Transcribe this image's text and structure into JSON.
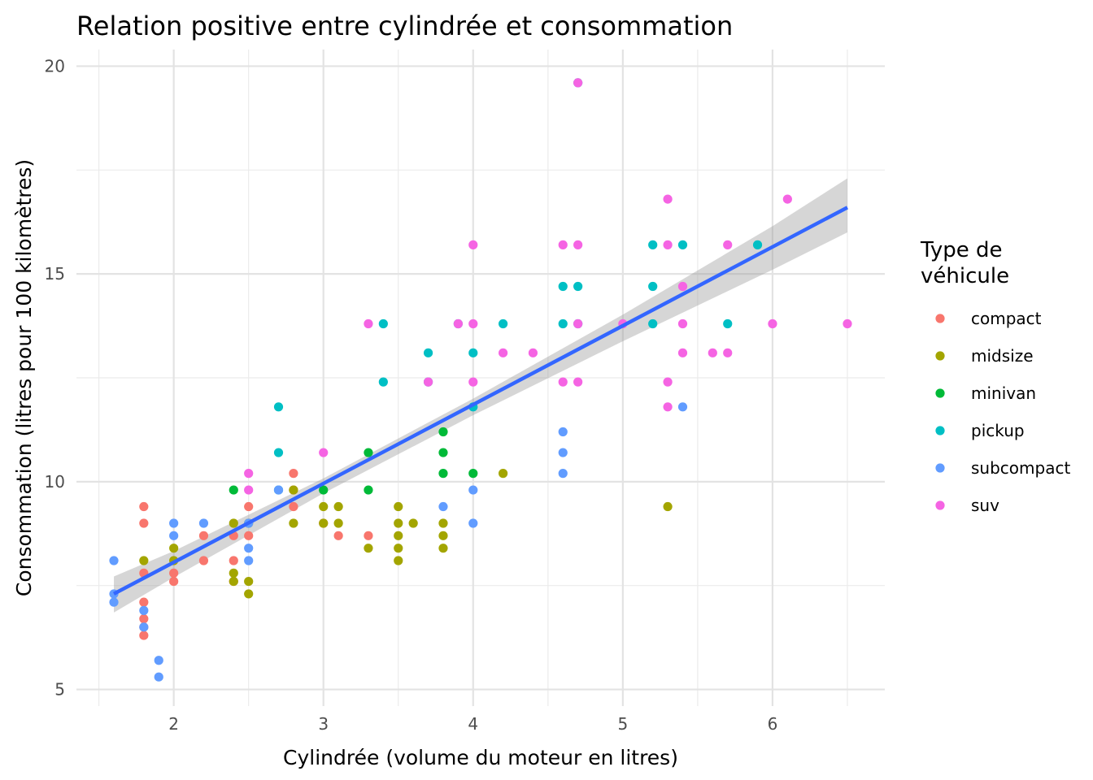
{
  "chart_data": {
    "type": "scatter",
    "title": "Relation positive entre cylindrée et consommation",
    "xlabel": "Cylindrée (volume du moteur en litres)",
    "ylabel": "Consommation (litres pour 100 kilomètres)",
    "xlim": [
      1.35,
      6.75
    ],
    "ylim": [
      4.6,
      20.4
    ],
    "x_ticks": [
      2,
      3,
      4,
      5,
      6
    ],
    "y_ticks": [
      5,
      10,
      15,
      20
    ],
    "grid": true,
    "legend": {
      "title_line1": "Type de",
      "title_line2": "véhicule",
      "placement": "right"
    },
    "trend_line": {
      "method": "linear fit",
      "color": "#3366FF",
      "band_color": "#999999",
      "points": [
        {
          "x": 1.6,
          "y": 7.3,
          "lower": 6.85,
          "upper": 7.72
        },
        {
          "x": 2.0,
          "y": 8.0,
          "lower": 7.7,
          "upper": 8.33
        },
        {
          "x": 3.0,
          "y": 9.9,
          "lower": 9.72,
          "upper": 10.08
        },
        {
          "x": 4.0,
          "y": 11.8,
          "lower": 11.6,
          "upper": 12.0
        },
        {
          "x": 5.0,
          "y": 13.7,
          "lower": 13.38,
          "upper": 14.02
        },
        {
          "x": 6.0,
          "y": 15.6,
          "lower": 15.1,
          "upper": 16.15
        },
        {
          "x": 6.5,
          "y": 16.6,
          "lower": 16.0,
          "upper": 17.3
        }
      ]
    },
    "series": [
      {
        "name": "compact",
        "color": "#F8766D",
        "points": [
          {
            "x": 1.8,
            "y": 9.4
          },
          {
            "x": 1.8,
            "y": 9.0
          },
          {
            "x": 1.8,
            "y": 7.8
          },
          {
            "x": 1.8,
            "y": 7.1
          },
          {
            "x": 1.8,
            "y": 6.7
          },
          {
            "x": 1.8,
            "y": 6.5
          },
          {
            "x": 1.8,
            "y": 6.3
          },
          {
            "x": 2.0,
            "y": 7.8
          },
          {
            "x": 2.0,
            "y": 7.6
          },
          {
            "x": 2.2,
            "y": 8.1
          },
          {
            "x": 2.2,
            "y": 8.7
          },
          {
            "x": 2.4,
            "y": 8.1
          },
          {
            "x": 2.4,
            "y": 7.6
          },
          {
            "x": 2.4,
            "y": 8.7
          },
          {
            "x": 2.5,
            "y": 9.4
          },
          {
            "x": 2.5,
            "y": 8.7
          },
          {
            "x": 2.8,
            "y": 10.2
          },
          {
            "x": 2.8,
            "y": 9.8
          },
          {
            "x": 2.8,
            "y": 9.4
          },
          {
            "x": 3.0,
            "y": 9.0
          },
          {
            "x": 3.1,
            "y": 8.7
          },
          {
            "x": 3.3,
            "y": 8.7
          }
        ]
      },
      {
        "name": "midsize",
        "color": "#A3A500",
        "points": [
          {
            "x": 1.8,
            "y": 8.1
          },
          {
            "x": 2.0,
            "y": 8.4
          },
          {
            "x": 2.0,
            "y": 8.1
          },
          {
            "x": 2.4,
            "y": 9.0
          },
          {
            "x": 2.4,
            "y": 7.8
          },
          {
            "x": 2.4,
            "y": 7.6
          },
          {
            "x": 2.5,
            "y": 7.6
          },
          {
            "x": 2.5,
            "y": 7.3
          },
          {
            "x": 2.5,
            "y": 9.0
          },
          {
            "x": 2.8,
            "y": 9.0
          },
          {
            "x": 2.8,
            "y": 9.8
          },
          {
            "x": 3.0,
            "y": 9.4
          },
          {
            "x": 3.0,
            "y": 9.0
          },
          {
            "x": 3.1,
            "y": 9.4
          },
          {
            "x": 3.1,
            "y": 9.0
          },
          {
            "x": 3.3,
            "y": 8.4
          },
          {
            "x": 3.5,
            "y": 9.4
          },
          {
            "x": 3.5,
            "y": 9.0
          },
          {
            "x": 3.5,
            "y": 8.7
          },
          {
            "x": 3.5,
            "y": 8.4
          },
          {
            "x": 3.5,
            "y": 8.1
          },
          {
            "x": 3.6,
            "y": 9.0
          },
          {
            "x": 3.8,
            "y": 9.0
          },
          {
            "x": 3.8,
            "y": 8.7
          },
          {
            "x": 3.8,
            "y": 8.4
          },
          {
            "x": 4.2,
            "y": 10.2
          },
          {
            "x": 5.3,
            "y": 9.4
          }
        ]
      },
      {
        "name": "minivan",
        "color": "#00BA38",
        "points": [
          {
            "x": 2.4,
            "y": 9.8
          },
          {
            "x": 3.0,
            "y": 9.8
          },
          {
            "x": 3.3,
            "y": 10.7
          },
          {
            "x": 3.3,
            "y": 9.8
          },
          {
            "x": 3.8,
            "y": 11.2
          },
          {
            "x": 3.8,
            "y": 10.7
          },
          {
            "x": 3.8,
            "y": 10.2
          },
          {
            "x": 4.0,
            "y": 10.2
          }
        ]
      },
      {
        "name": "pickup",
        "color": "#00BFC4",
        "points": [
          {
            "x": 2.7,
            "y": 11.8
          },
          {
            "x": 2.7,
            "y": 10.7
          },
          {
            "x": 2.7,
            "y": 9.8
          },
          {
            "x": 3.4,
            "y": 13.8
          },
          {
            "x": 3.4,
            "y": 12.4
          },
          {
            "x": 3.7,
            "y": 13.1
          },
          {
            "x": 3.7,
            "y": 12.4
          },
          {
            "x": 3.9,
            "y": 13.8
          },
          {
            "x": 4.0,
            "y": 13.1
          },
          {
            "x": 4.0,
            "y": 11.8
          },
          {
            "x": 4.2,
            "y": 13.8
          },
          {
            "x": 4.6,
            "y": 14.7
          },
          {
            "x": 4.6,
            "y": 13.8
          },
          {
            "x": 4.7,
            "y": 14.7
          },
          {
            "x": 4.7,
            "y": 13.8
          },
          {
            "x": 4.7,
            "y": 19.6
          },
          {
            "x": 5.2,
            "y": 15.7
          },
          {
            "x": 5.2,
            "y": 14.7
          },
          {
            "x": 5.2,
            "y": 13.8
          },
          {
            "x": 5.4,
            "y": 15.7
          },
          {
            "x": 5.7,
            "y": 13.8
          },
          {
            "x": 5.9,
            "y": 15.7
          }
        ]
      },
      {
        "name": "subcompact",
        "color": "#619CFF",
        "points": [
          {
            "x": 1.6,
            "y": 8.1
          },
          {
            "x": 1.6,
            "y": 7.3
          },
          {
            "x": 1.6,
            "y": 7.1
          },
          {
            "x": 1.8,
            "y": 6.9
          },
          {
            "x": 1.8,
            "y": 6.5
          },
          {
            "x": 1.9,
            "y": 5.7
          },
          {
            "x": 1.9,
            "y": 5.3
          },
          {
            "x": 2.0,
            "y": 9.0
          },
          {
            "x": 2.0,
            "y": 8.7
          },
          {
            "x": 2.2,
            "y": 9.0
          },
          {
            "x": 2.5,
            "y": 9.0
          },
          {
            "x": 2.5,
            "y": 8.4
          },
          {
            "x": 2.5,
            "y": 8.1
          },
          {
            "x": 2.7,
            "y": 9.8
          },
          {
            "x": 3.8,
            "y": 9.4
          },
          {
            "x": 4.0,
            "y": 9.8
          },
          {
            "x": 4.0,
            "y": 9.0
          },
          {
            "x": 4.6,
            "y": 11.2
          },
          {
            "x": 4.6,
            "y": 10.7
          },
          {
            "x": 4.6,
            "y": 10.2
          },
          {
            "x": 5.4,
            "y": 11.8
          }
        ]
      },
      {
        "name": "suv",
        "color": "#F564E3",
        "points": [
          {
            "x": 2.5,
            "y": 10.2
          },
          {
            "x": 2.5,
            "y": 9.8
          },
          {
            "x": 3.0,
            "y": 10.7
          },
          {
            "x": 3.3,
            "y": 13.8
          },
          {
            "x": 3.7,
            "y": 12.4
          },
          {
            "x": 3.9,
            "y": 13.8
          },
          {
            "x": 4.0,
            "y": 15.7
          },
          {
            "x": 4.0,
            "y": 13.8
          },
          {
            "x": 4.0,
            "y": 12.4
          },
          {
            "x": 4.2,
            "y": 13.1
          },
          {
            "x": 4.4,
            "y": 13.1
          },
          {
            "x": 4.6,
            "y": 15.7
          },
          {
            "x": 4.6,
            "y": 12.4
          },
          {
            "x": 4.7,
            "y": 19.6
          },
          {
            "x": 4.7,
            "y": 15.7
          },
          {
            "x": 4.7,
            "y": 13.8
          },
          {
            "x": 4.7,
            "y": 12.4
          },
          {
            "x": 5.0,
            "y": 13.8
          },
          {
            "x": 5.3,
            "y": 16.8
          },
          {
            "x": 5.3,
            "y": 15.7
          },
          {
            "x": 5.3,
            "y": 12.4
          },
          {
            "x": 5.3,
            "y": 11.8
          },
          {
            "x": 5.4,
            "y": 14.7
          },
          {
            "x": 5.4,
            "y": 13.8
          },
          {
            "x": 5.4,
            "y": 13.1
          },
          {
            "x": 5.6,
            "y": 13.1
          },
          {
            "x": 5.7,
            "y": 15.7
          },
          {
            "x": 5.7,
            "y": 13.1
          },
          {
            "x": 6.0,
            "y": 13.8
          },
          {
            "x": 6.1,
            "y": 16.8
          },
          {
            "x": 6.5,
            "y": 13.8
          }
        ]
      }
    ]
  }
}
